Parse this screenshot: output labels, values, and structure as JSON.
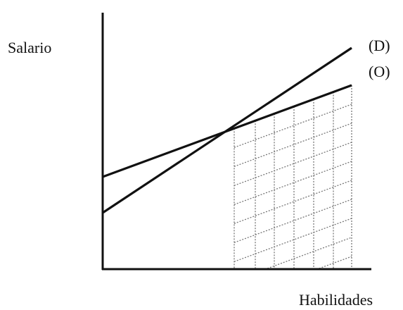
{
  "diagram": {
    "y_axis_label": "Salario",
    "x_axis_label": "Habilidades",
    "lines": [
      {
        "name": "demand-line",
        "label": "(D)"
      },
      {
        "name": "supply-line",
        "label": "(O)"
      }
    ],
    "colors": {
      "lines": "#111111",
      "axes": "#111111",
      "hatch": "#777777",
      "background": "#ffffff"
    }
  }
}
